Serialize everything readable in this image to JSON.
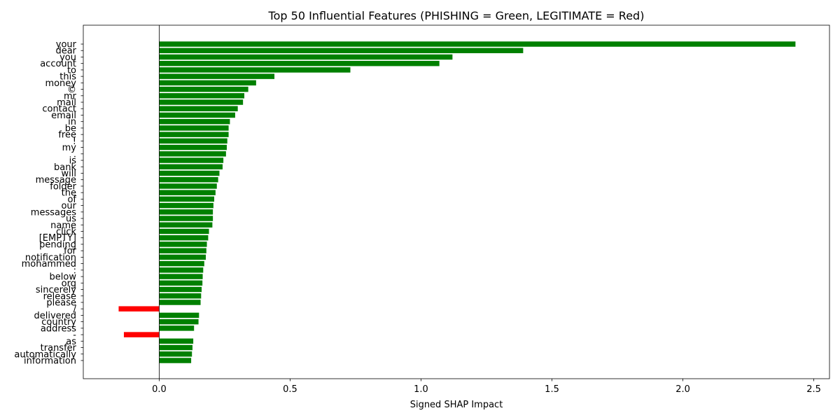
{
  "chart_data": {
    "type": "bar",
    "orientation": "horizontal",
    "title": "Top 50 Influential Features (PHISHING = Green, LEGITIMATE = Red)",
    "xlabel": "Signed SHAP Impact",
    "ylabel": "",
    "xlim": [
      -0.29,
      2.56
    ],
    "xticks": [
      0.0,
      0.5,
      1.0,
      1.5,
      2.0,
      2.5
    ],
    "xtick_labels": [
      "0.0",
      "0.5",
      "1.0",
      "1.5",
      "2.0",
      "2.5"
    ],
    "grid": false,
    "zero_line": true,
    "colors": {
      "positive": "#008000",
      "negative": "#ff0000",
      "axis": "#000000"
    },
    "categories": [
      "your",
      "dear",
      "you",
      "account",
      "to",
      "this",
      "money",
      "©",
      "mr",
      "mail",
      "contact",
      "email",
      "in",
      "be",
      "free",
      "!",
      "my",
      ".",
      "is",
      "bank",
      "will",
      "message",
      "folder",
      "the",
      "of",
      "our",
      "messages",
      "us",
      "name",
      "click",
      "[EMPTY]",
      "pending",
      "for",
      "notification",
      "mohammed",
      ":",
      "below",
      "org",
      "sincerely",
      "release",
      "please",
      "/",
      "delivered",
      "country",
      "address",
      "-",
      "as",
      "transfer",
      "automatically",
      "information"
    ],
    "values": [
      2.43,
      1.39,
      1.12,
      1.07,
      0.73,
      0.44,
      0.37,
      0.34,
      0.325,
      0.32,
      0.3,
      0.29,
      0.27,
      0.265,
      0.265,
      0.26,
      0.258,
      0.255,
      0.245,
      0.242,
      0.23,
      0.225,
      0.22,
      0.215,
      0.21,
      0.207,
      0.205,
      0.205,
      0.203,
      0.19,
      0.187,
      0.182,
      0.18,
      0.178,
      0.172,
      0.168,
      0.166,
      0.165,
      0.162,
      0.16,
      0.158,
      -0.155,
      0.152,
      0.15,
      0.133,
      -0.135,
      0.13,
      0.127,
      0.125,
      0.122
    ]
  }
}
